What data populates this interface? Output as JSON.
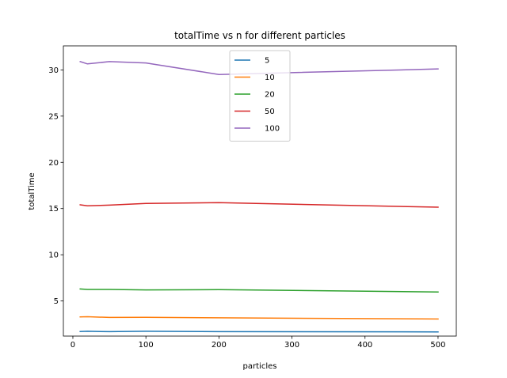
{
  "chart_data": {
    "type": "line",
    "title": "totalTime vs n for different particles",
    "xlabel": "particles",
    "ylabel": "totalTime",
    "xlim": [
      -13,
      525
    ],
    "ylim": [
      1.2,
      32.6
    ],
    "xticks": [
      0,
      100,
      200,
      300,
      400,
      500
    ],
    "yticks": [
      5,
      10,
      15,
      20,
      25,
      30
    ],
    "grid": false,
    "legend_position": "upper center",
    "x": [
      10,
      20,
      50,
      100,
      200,
      500
    ],
    "series": [
      {
        "name": "5",
        "color": "#1f77b4",
        "values": [
          1.7,
          1.72,
          1.68,
          1.72,
          1.68,
          1.65
        ]
      },
      {
        "name": "10",
        "color": "#ff7f0e",
        "values": [
          3.28,
          3.3,
          3.22,
          3.24,
          3.18,
          3.05
        ]
      },
      {
        "name": "20",
        "color": "#2ca02c",
        "values": [
          6.3,
          6.25,
          6.25,
          6.2,
          6.22,
          5.97
        ]
      },
      {
        "name": "50",
        "color": "#d62728",
        "values": [
          15.4,
          15.3,
          15.37,
          15.55,
          15.63,
          15.15
        ]
      },
      {
        "name": "100",
        "color": "#9467bd",
        "values": [
          30.9,
          30.65,
          30.9,
          30.75,
          29.5,
          30.1
        ]
      }
    ]
  }
}
